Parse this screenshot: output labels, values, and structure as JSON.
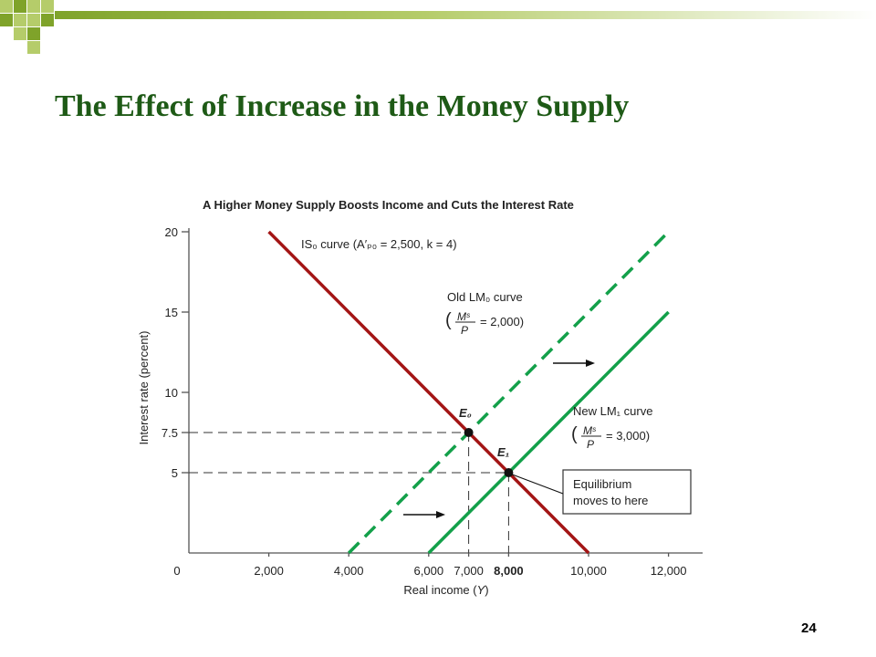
{
  "slide": {
    "title": "The Effect of Increase in the Money Supply",
    "slide_number": "24"
  },
  "colors": {
    "title": "#1e5a16",
    "is_curve": "#a31515",
    "lm_curves": "#13a04a",
    "deco_light": "#b5cc6a",
    "deco_dark": "#7fa32a"
  },
  "chart_data": {
    "type": "line",
    "title": "A Higher Money Supply Boosts Income and Cuts the Interest Rate",
    "xlabel_text": "Real income (",
    "xlabel_var": "Y",
    "ylabel": "Interest rate (percent)",
    "xlim": [
      0,
      12500
    ],
    "ylim": [
      0,
      20
    ],
    "x_ticks": [
      {
        "value": 0,
        "label": "0"
      },
      {
        "value": 2000,
        "label": "2,000"
      },
      {
        "value": 4000,
        "label": "4,000"
      },
      {
        "value": 6000,
        "label": "6,000"
      },
      {
        "value": 7000,
        "label": "7,000"
      },
      {
        "value": 8000,
        "label": "8,000",
        "bold": true
      },
      {
        "value": 10000,
        "label": "10,000"
      },
      {
        "value": 12000,
        "label": "12,000"
      }
    ],
    "y_ticks": [
      {
        "value": 5,
        "label": "5"
      },
      {
        "value": 7.5,
        "label": "7.5"
      },
      {
        "value": 10,
        "label": "10"
      },
      {
        "value": 15,
        "label": "15"
      },
      {
        "value": 20,
        "label": "20"
      }
    ],
    "series": [
      {
        "name": "IS0",
        "style": "solid",
        "color": "#a31515",
        "x": [
          2000,
          10000
        ],
        "y": [
          20,
          0
        ]
      },
      {
        "name": "LM0",
        "style": "dashed",
        "color": "#13a04a",
        "x": [
          4000,
          12000
        ],
        "y": [
          0,
          20
        ]
      },
      {
        "name": "LM1",
        "style": "solid",
        "color": "#13a04a",
        "x": [
          6000,
          12000
        ],
        "y": [
          0,
          15
        ]
      }
    ],
    "points": [
      {
        "name": "E0",
        "x": 7000,
        "y": 7.5
      },
      {
        "name": "E1",
        "x": 8000,
        "y": 5
      }
    ],
    "annotations": {
      "is_label": "IS₀ curve (A′ₚ₀ = 2,500, k = 4)",
      "old_lm_label": "Old LM₀ curve",
      "old_lm_eq": "= 2,000)",
      "new_lm_label": "New LM₁ curve",
      "new_lm_eq": "= 3,000)",
      "ms": "Mˢ",
      "p": "P",
      "paren": "(",
      "e0": "E₀",
      "e1": "E₁",
      "equilibrium_line1": "Equilibrium",
      "equilibrium_line2": "moves to here"
    }
  }
}
